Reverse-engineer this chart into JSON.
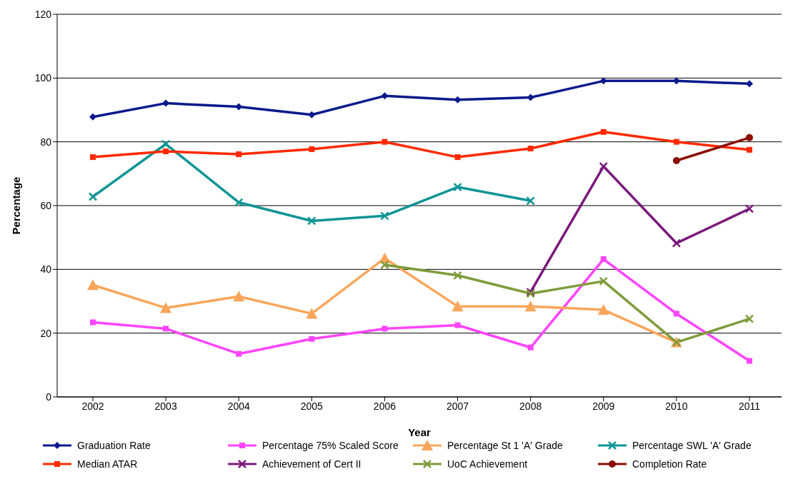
{
  "chart_data": {
    "type": "line",
    "xlabel": "Year",
    "ylabel": "Percentage",
    "categories": [
      "2002",
      "2003",
      "2004",
      "2005",
      "2006",
      "2007",
      "2008",
      "2009",
      "2010",
      "2011"
    ],
    "ylim": [
      0,
      120
    ],
    "yticks": [
      0,
      20,
      40,
      60,
      80,
      100,
      120
    ],
    "grid": "y",
    "legend": "bottom",
    "series": [
      {
        "name": "Graduation Rate",
        "color": "#0a1a8c",
        "marker": "diamond",
        "values": [
          87.8,
          92.1,
          91,
          88.5,
          94.4,
          93.2,
          93.9,
          99.1,
          99.1,
          98.2
        ]
      },
      {
        "name": "Percentage 75% Scaled Score",
        "color": "#ff44ff",
        "marker": "square",
        "values": [
          23.4,
          21.4,
          13.5,
          18.2,
          21.4,
          22.5,
          15.5,
          43.2,
          26.1,
          11.3
        ]
      },
      {
        "name": "Percentage St 1 'A' Grade",
        "color": "#f9a65a",
        "marker": "triangle",
        "values": [
          35.1,
          27.9,
          31.5,
          26.1,
          43.5,
          28.4,
          28.4,
          27.3,
          17.1,
          null
        ]
      },
      {
        "name": "Percentage SWL 'A' Grade",
        "color": "#109595",
        "marker": "cross",
        "values": [
          62.8,
          79.3,
          61,
          55.2,
          56.8,
          65.8,
          61.5,
          null,
          null,
          null
        ]
      },
      {
        "name": "Median ATAR",
        "color": "#ff2a00",
        "marker": "square",
        "values": [
          75.2,
          77,
          76.1,
          77.7,
          80,
          75.2,
          77.9,
          83.1,
          80,
          77.5
        ]
      },
      {
        "name": "Achievement of Cert II",
        "color": "#7b1a7b",
        "marker": "cross",
        "values": [
          null,
          null,
          null,
          null,
          null,
          null,
          32.9,
          72.3,
          48.2,
          59
        ]
      },
      {
        "name": "UoC Achievement",
        "color": "#7f9c3c",
        "marker": "cross",
        "values": [
          null,
          null,
          null,
          null,
          41.4,
          38.1,
          32.4,
          36.3,
          17.1,
          24.5
        ]
      },
      {
        "name": "Completion Rate",
        "color": "#8b0d00",
        "marker": "circle",
        "values": [
          null,
          null,
          null,
          null,
          null,
          null,
          null,
          null,
          74.1,
          81.3
        ]
      }
    ]
  }
}
